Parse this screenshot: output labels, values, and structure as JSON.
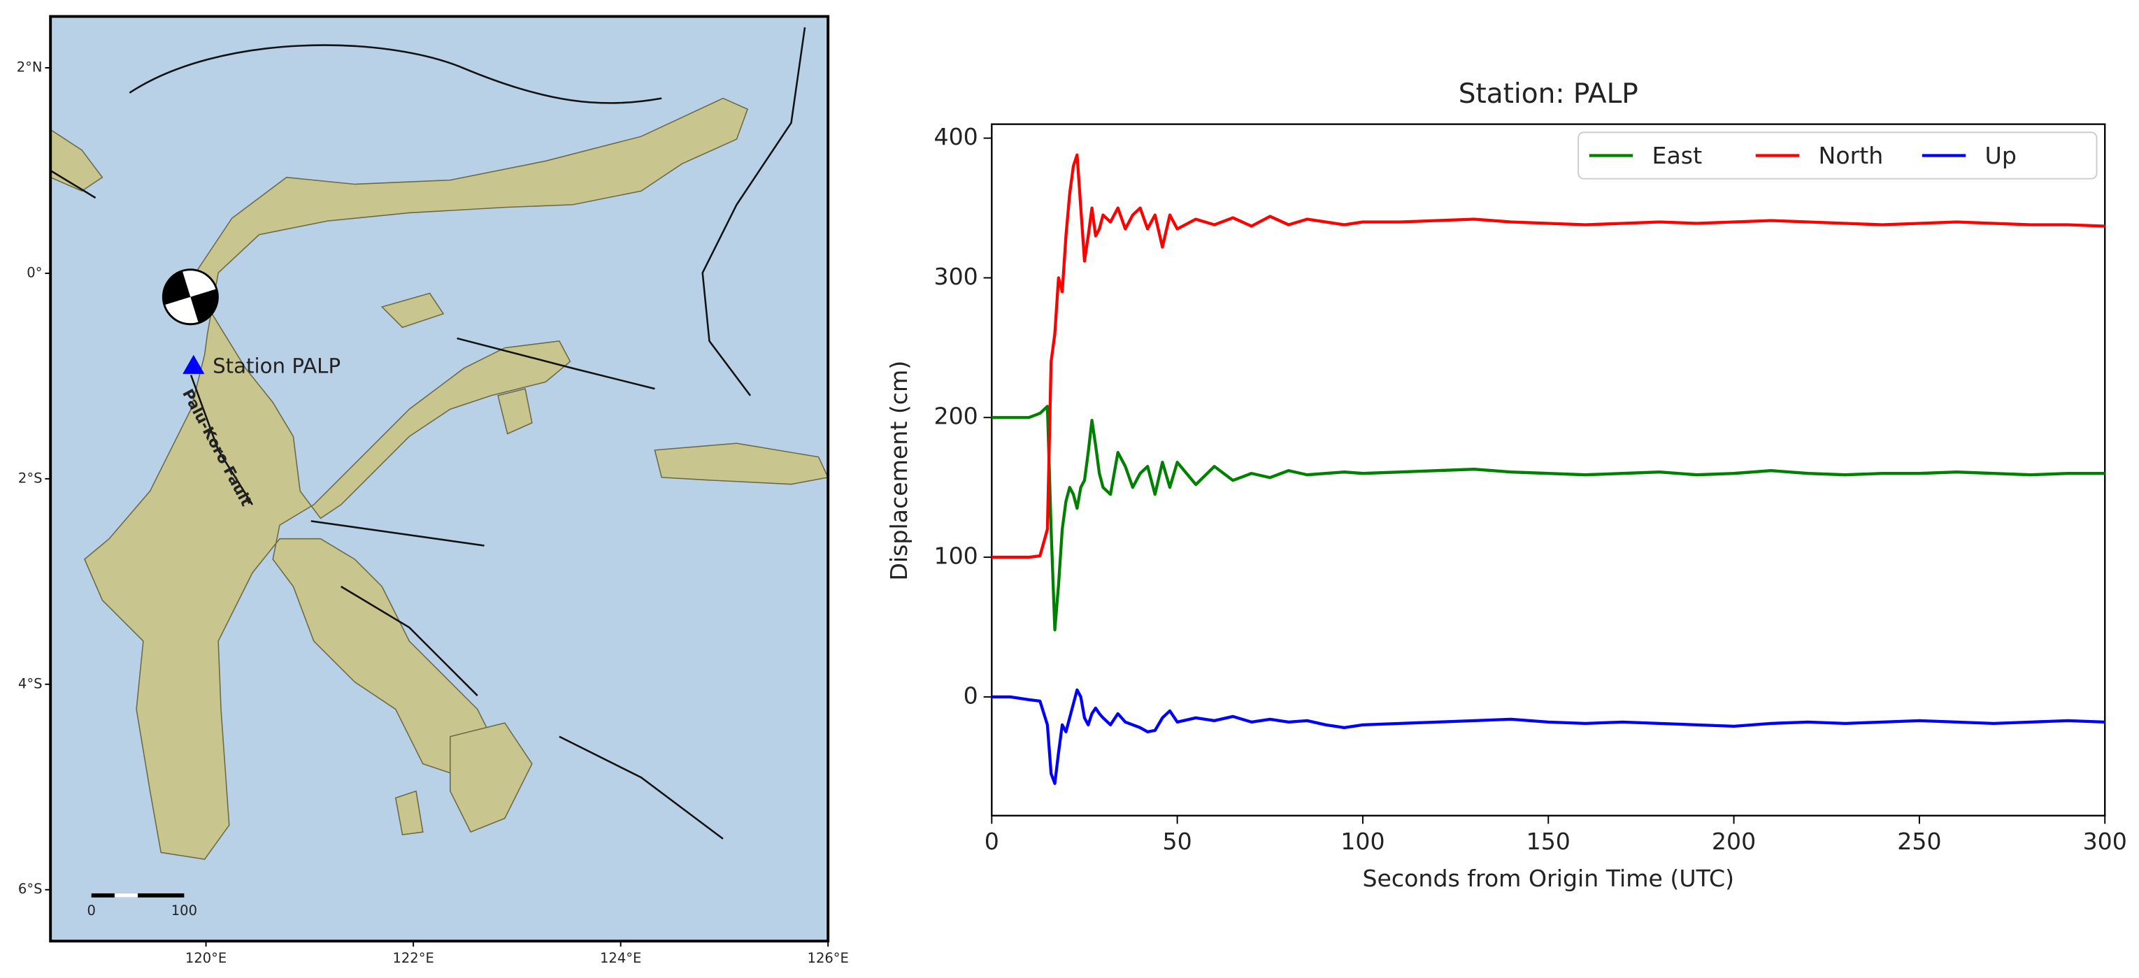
{
  "chart_data": [
    {
      "type": "map",
      "xlim": [
        118.5,
        126
      ],
      "ylim": [
        -6.5,
        2.5
      ],
      "xticks": [
        {
          "value": 120,
          "label": "120°E"
        },
        {
          "value": 122,
          "label": "122°E"
        },
        {
          "value": 124,
          "label": "124°E"
        },
        {
          "value": 126,
          "label": "126°E"
        }
      ],
      "yticks": [
        {
          "value": 2,
          "label": "2°N"
        },
        {
          "value": 0,
          "label": "0°"
        },
        {
          "value": -2,
          "label": "2°S"
        },
        {
          "value": -4,
          "label": "4°S"
        },
        {
          "value": -6,
          "label": "6°S"
        }
      ],
      "points": [
        {
          "name": "Station PALP",
          "x": 119.88,
          "y": -0.9,
          "color": "#0000ff"
        }
      ],
      "markers": [
        {
          "x": 119.85,
          "y": -0.23
        }
      ],
      "annotations": [
        {
          "text": "Palu-Koro Fault",
          "x": 120.1,
          "y": -1.7
        }
      ],
      "scale_bar": [
        0,
        100
      ]
    },
    {
      "type": "line",
      "title": "Station: PALP",
      "xlabel": "Seconds from Origin Time (UTC)",
      "ylabel": "Displacement (cm)",
      "x": [
        0,
        5,
        10,
        13,
        15,
        16,
        17,
        18,
        19,
        20,
        21,
        22,
        23,
        24,
        25,
        26,
        27,
        28,
        29,
        30,
        32,
        34,
        36,
        38,
        40,
        42,
        44,
        46,
        48,
        50,
        55,
        60,
        65,
        70,
        75,
        80,
        85,
        90,
        95,
        100,
        110,
        120,
        130,
        140,
        150,
        160,
        170,
        180,
        190,
        200,
        210,
        220,
        230,
        240,
        250,
        260,
        270,
        280,
        290,
        300
      ],
      "series": [
        {
          "name": "East",
          "color": "#008000",
          "values": [
            200,
            200,
            200,
            203,
            208,
            120,
            48,
            80,
            120,
            140,
            150,
            145,
            135,
            150,
            155,
            175,
            198,
            180,
            160,
            150,
            145,
            175,
            165,
            150,
            160,
            165,
            145,
            168,
            150,
            168,
            152,
            165,
            155,
            160,
            157,
            162,
            159,
            160,
            161,
            160,
            161,
            162,
            163,
            161,
            160,
            159,
            160,
            161,
            159,
            160,
            162,
            160,
            159,
            160,
            160,
            161,
            160,
            159,
            160,
            160
          ]
        },
        {
          "name": "North",
          "color": "#ff0000",
          "values": [
            100,
            100,
            100,
            101,
            120,
            240,
            260,
            300,
            290,
            330,
            360,
            380,
            388,
            350,
            312,
            330,
            350,
            330,
            335,
            345,
            340,
            350,
            335,
            345,
            350,
            335,
            345,
            322,
            345,
            335,
            342,
            338,
            343,
            337,
            344,
            338,
            342,
            340,
            338,
            340,
            340,
            341,
            342,
            340,
            339,
            338,
            339,
            340,
            339,
            340,
            341,
            340,
            339,
            338,
            339,
            340,
            339,
            338,
            338,
            337
          ]
        },
        {
          "name": "Up",
          "color": "#0000ff",
          "values": [
            0,
            0,
            -2,
            -3,
            -20,
            -55,
            -62,
            -40,
            -20,
            -25,
            -15,
            -5,
            5,
            0,
            -15,
            -20,
            -12,
            -8,
            -12,
            -15,
            -20,
            -12,
            -18,
            -20,
            -22,
            -25,
            -24,
            -15,
            -10,
            -18,
            -15,
            -17,
            -14,
            -18,
            -16,
            -18,
            -17,
            -20,
            -22,
            -20,
            -19,
            -18,
            -17,
            -16,
            -18,
            -19,
            -18,
            -19,
            -20,
            -21,
            -19,
            -18,
            -19,
            -18,
            -17,
            -18,
            -19,
            -18,
            -17,
            -18
          ]
        }
      ],
      "xlim": [
        0,
        300
      ],
      "ylim": [
        -85,
        410
      ],
      "xticks": [
        0,
        50,
        100,
        150,
        200,
        250,
        300
      ],
      "yticks": [
        0,
        100,
        200,
        300,
        400
      ],
      "legend": "upper right",
      "grid": false
    }
  ]
}
